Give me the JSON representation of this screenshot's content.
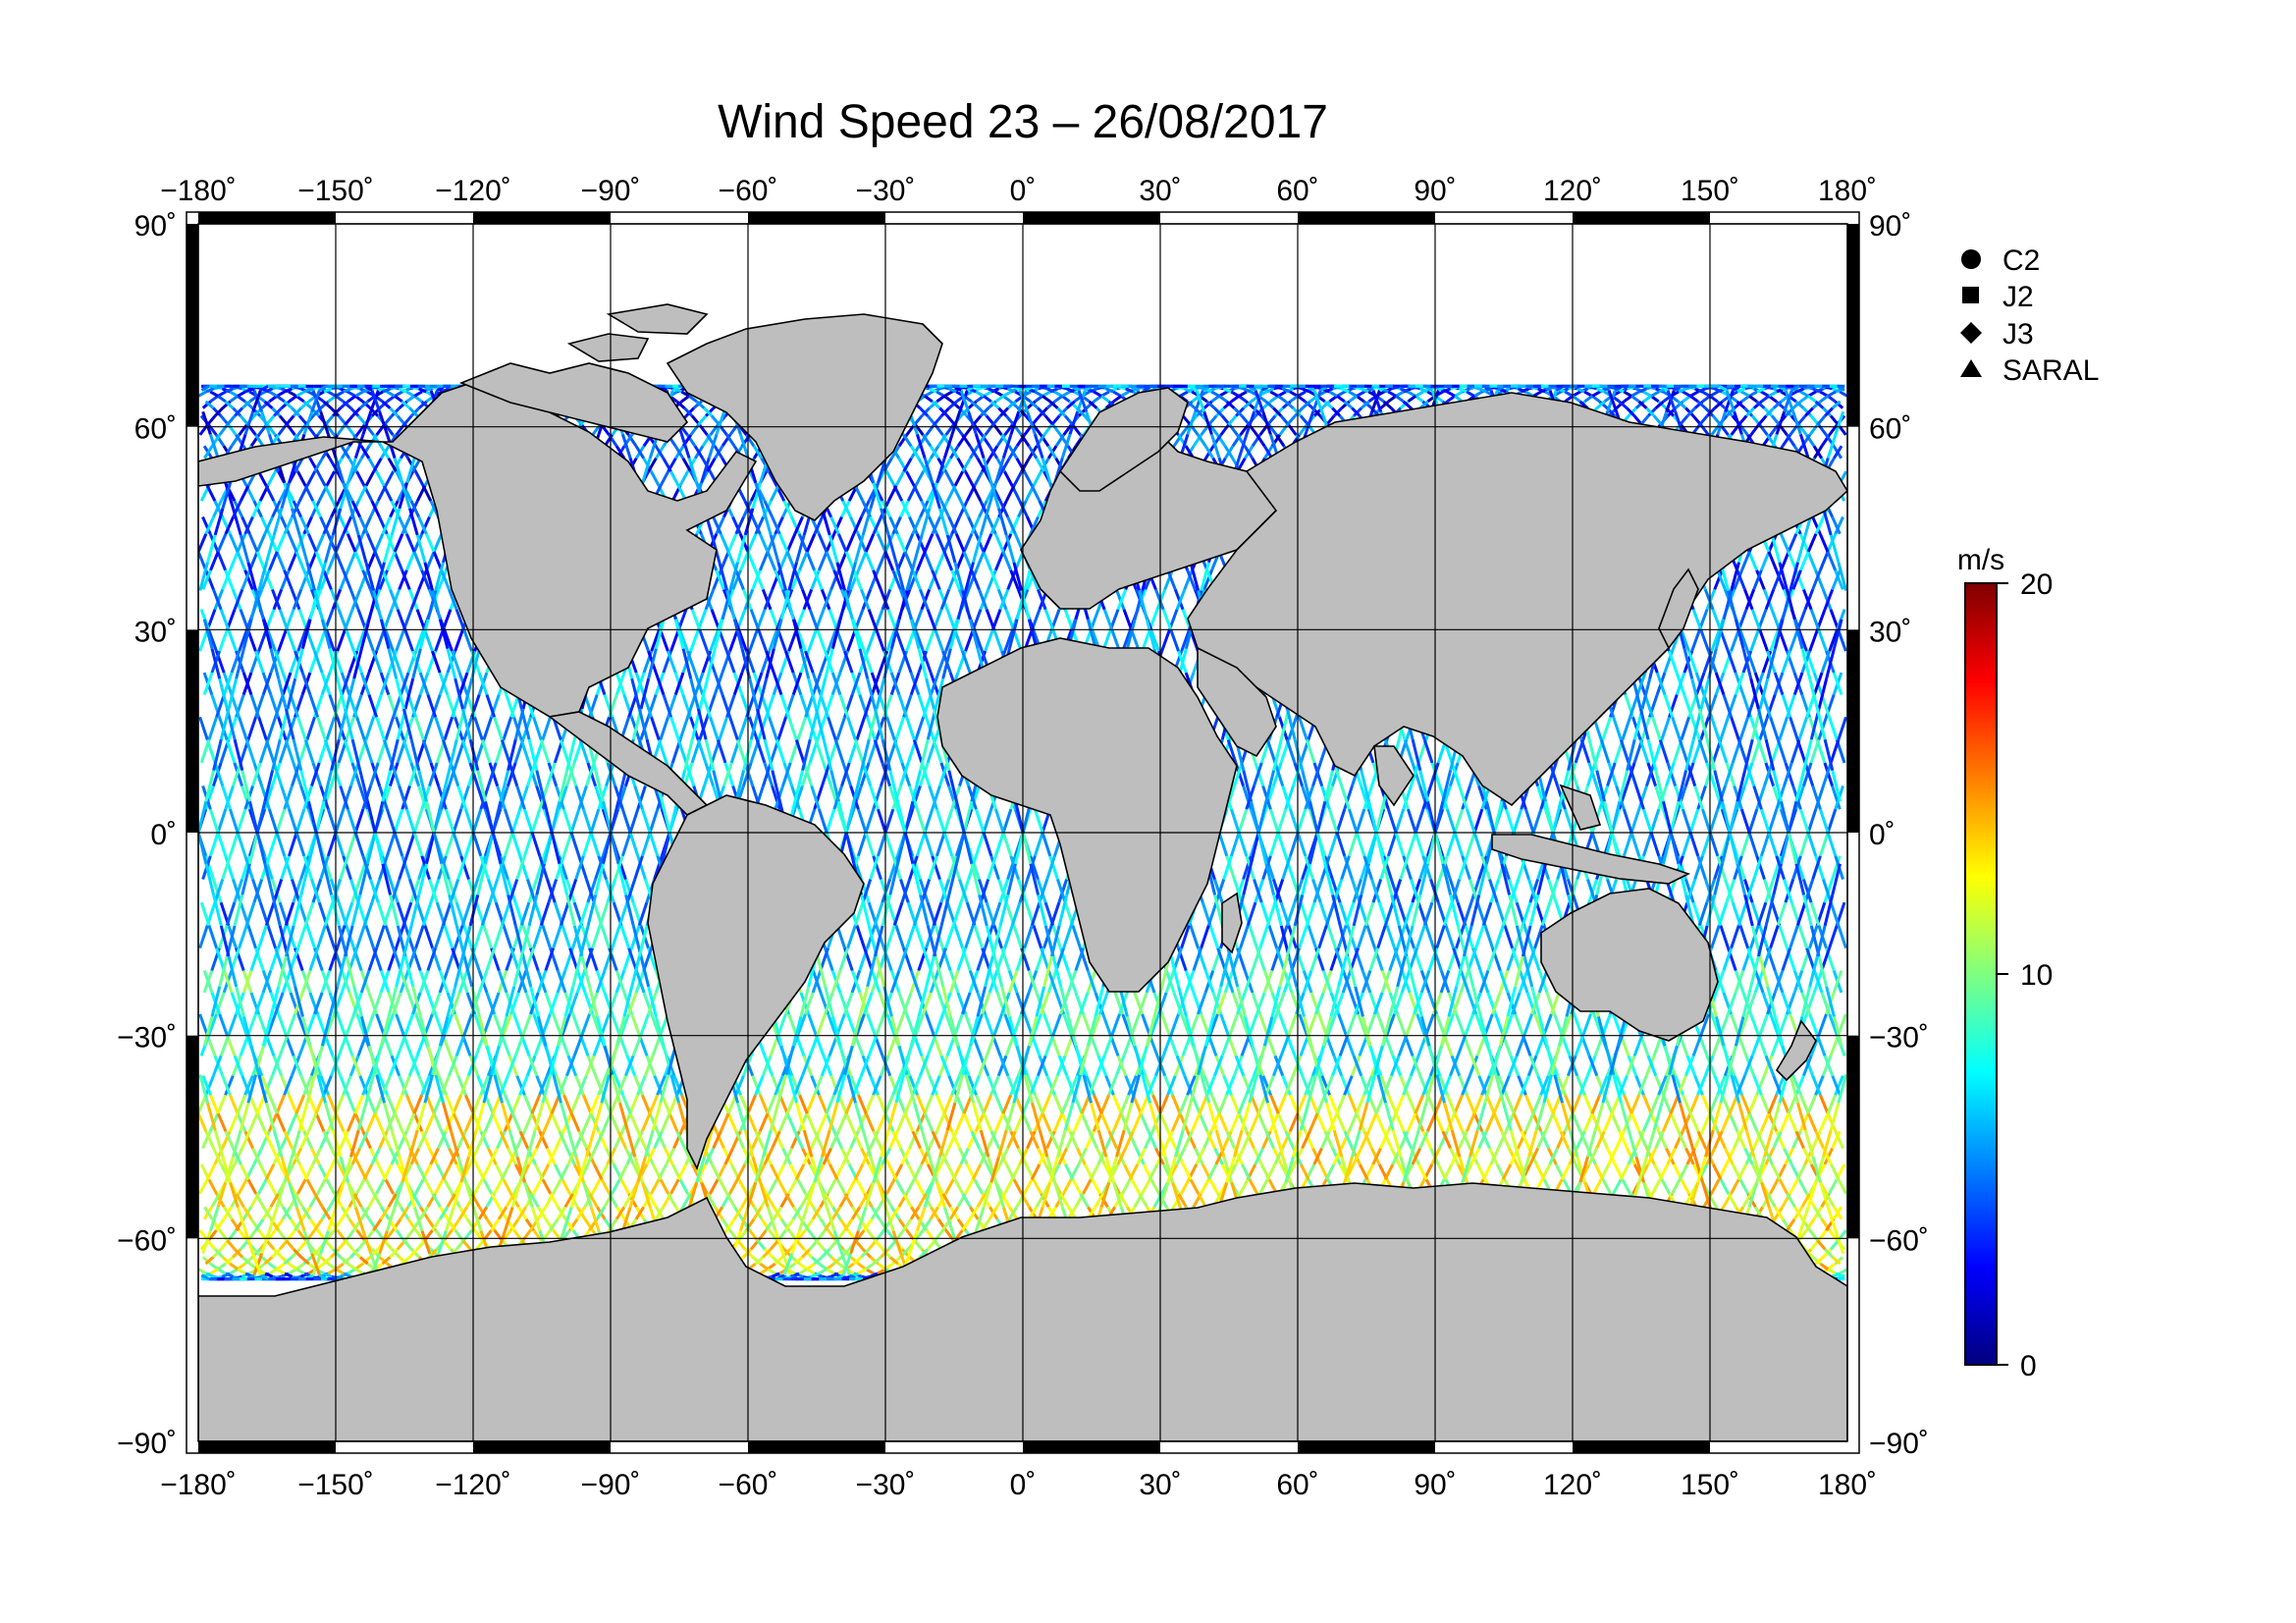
{
  "title": "Wind Speed 23 – 26/08/2017",
  "map": {
    "projection": "equirectangular",
    "lon_range": [
      -180,
      180
    ],
    "lat_range": [
      -90,
      90
    ],
    "lon_ticks": [
      -180,
      -150,
      -120,
      -90,
      -60,
      -30,
      0,
      30,
      60,
      90,
      120,
      150,
      180
    ],
    "lat_ticks": [
      90,
      60,
      30,
      0,
      -30,
      -60,
      -90
    ],
    "lon_tick_labels": [
      "−180˚",
      "−150˚",
      "−120˚",
      "−90˚",
      "−60˚",
      "−30˚",
      "0˚",
      "30˚",
      "60˚",
      "90˚",
      "120˚",
      "150˚",
      "180˚"
    ],
    "lat_tick_labels": [
      "90˚",
      "60˚",
      "30˚",
      "0˚",
      "−30˚",
      "−60˚",
      "−90˚"
    ],
    "grid": true,
    "land_color": "#bebebe",
    "frame_color": "#000000"
  },
  "legend": {
    "placement": "right",
    "items": [
      {
        "label": "C2",
        "marker": "circle"
      },
      {
        "label": "J2",
        "marker": "square"
      },
      {
        "label": "J3",
        "marker": "diamond"
      },
      {
        "label": "SARAL",
        "marker": "triangle"
      }
    ]
  },
  "colorbar": {
    "unit": "m/s",
    "min": 0,
    "max": 20,
    "tick_values": [
      20,
      10,
      0
    ],
    "tick_labels": [
      "20",
      "10",
      "0"
    ],
    "colors": [
      "#00007f",
      "#0000ff",
      "#007fff",
      "#00ffff",
      "#7fff7f",
      "#ffff00",
      "#ff7f00",
      "#ff0000",
      "#7f0000"
    ]
  },
  "chart_data": {
    "type": "scatter",
    "description_variable": "wind speed along altimeter ground tracks",
    "xlabel": "",
    "ylabel": "",
    "xlim": [
      -180,
      180
    ],
    "ylim": [
      -90,
      90
    ],
    "value_range": [
      0,
      20
    ],
    "regional_speed_m_s": [
      {
        "lat_band": [
          50,
          65
        ],
        "typical": 4
      },
      {
        "lat_band": [
          20,
          50
        ],
        "typical": 5
      },
      {
        "lat_band": [
          -20,
          20
        ],
        "typical": 6
      },
      {
        "lat_band": [
          -40,
          -20
        ],
        "typical": 8
      },
      {
        "lat_band": [
          -65,
          -40
        ],
        "typical": 12
      }
    ]
  }
}
